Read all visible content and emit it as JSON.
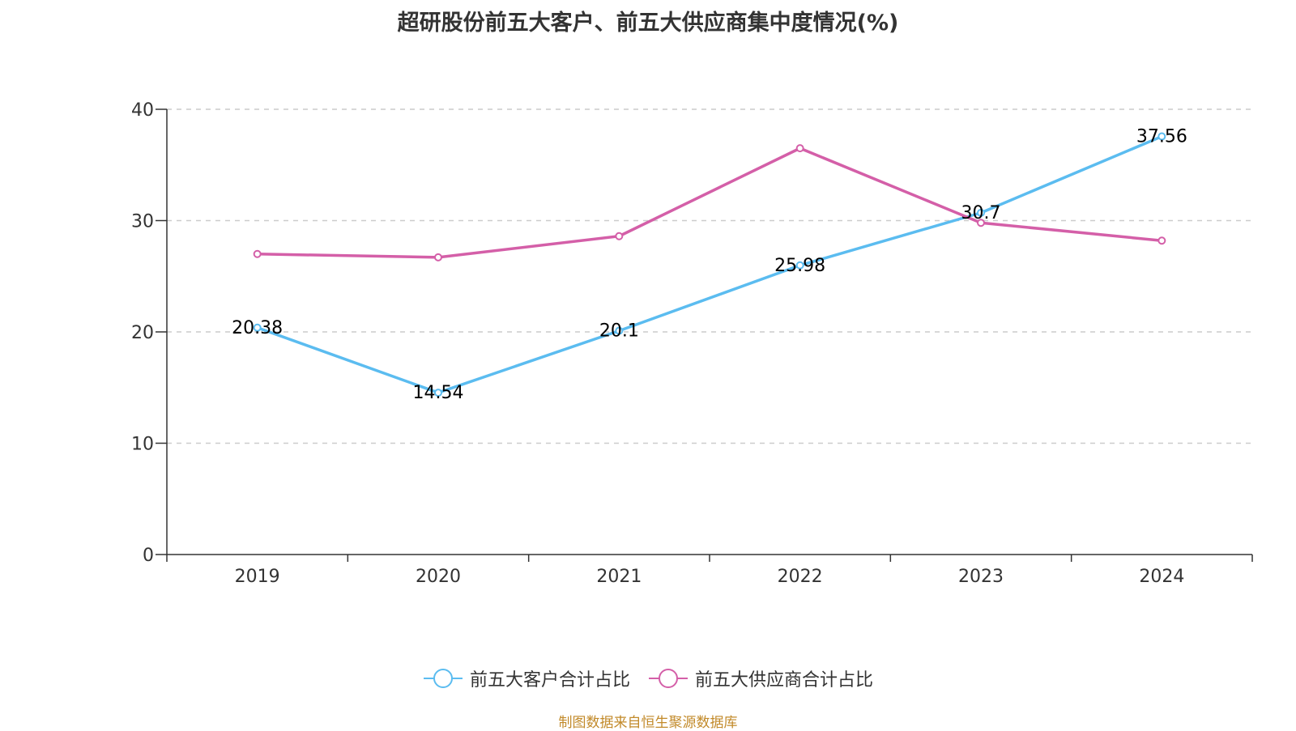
{
  "title": "超研股份前五大客户、前五大供应商集中度情况(%)",
  "source": "制图数据来自恒生聚源数据库",
  "colors": {
    "series1": "#5bbcf0",
    "series2": "#d45fa8",
    "axis": "#333333",
    "grid": "#cccccc",
    "text": "#333333"
  },
  "chart_data": {
    "type": "line",
    "title": "超研股份前五大客户、前五大供应商集中度情况(%)",
    "xlabel": "",
    "ylabel": "",
    "categories": [
      "2019",
      "2020",
      "2021",
      "2022",
      "2023",
      "2024"
    ],
    "ylim": [
      0,
      40
    ],
    "yticks": [
      0,
      10,
      20,
      30,
      40
    ],
    "grid": "horizontal-dashed",
    "legend_position": "bottom-center",
    "series": [
      {
        "name": "前五大客户合计占比",
        "values": [
          20.38,
          14.54,
          20.1,
          25.98,
          30.7,
          37.56
        ],
        "labels": [
          "20.38",
          "14.54",
          "20.1",
          "25.98",
          "30.7",
          "37.56"
        ],
        "color": "#5bbcf0"
      },
      {
        "name": "前五大供应商合计占比",
        "values": [
          27.0,
          26.7,
          28.6,
          36.5,
          29.8,
          28.2
        ],
        "color": "#d45fa8"
      }
    ]
  }
}
